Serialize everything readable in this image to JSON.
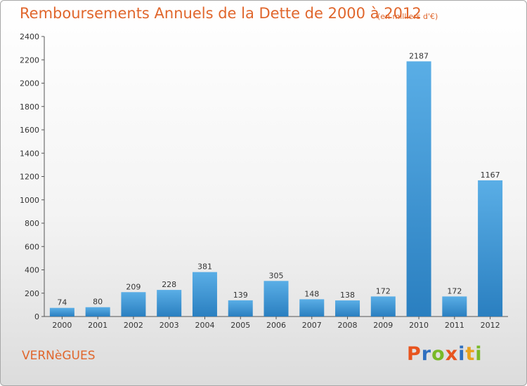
{
  "chart_data": {
    "type": "bar",
    "title": "Remboursements Annuels de la Dette de 2000 à 2012",
    "subtitle": "(en milliers d'€)",
    "categories": [
      "2000",
      "2001",
      "2002",
      "2003",
      "2004",
      "2005",
      "2006",
      "2007",
      "2008",
      "2009",
      "2010",
      "2011",
      "2012"
    ],
    "values": [
      74,
      80,
      209,
      228,
      381,
      139,
      305,
      148,
      138,
      172,
      2187,
      172,
      1167
    ],
    "ylim": [
      0,
      2400
    ],
    "yticks": [
      0,
      200,
      400,
      600,
      800,
      1000,
      1200,
      1400,
      1600,
      1800,
      2000,
      2200,
      2400
    ],
    "grid": false,
    "bar_color_top": "#5aaee6",
    "bar_color_bottom": "#2a7fc0"
  },
  "footer": {
    "place": "VERNèGUES",
    "brand_letters": [
      "P",
      "r",
      "o",
      "x",
      "i",
      "t",
      "i"
    ],
    "brand_colors": [
      "#e8541e",
      "#2f6fbf",
      "#79b928",
      "#e8541e",
      "#2f6fbf",
      "#e8a21e",
      "#79b928"
    ]
  }
}
